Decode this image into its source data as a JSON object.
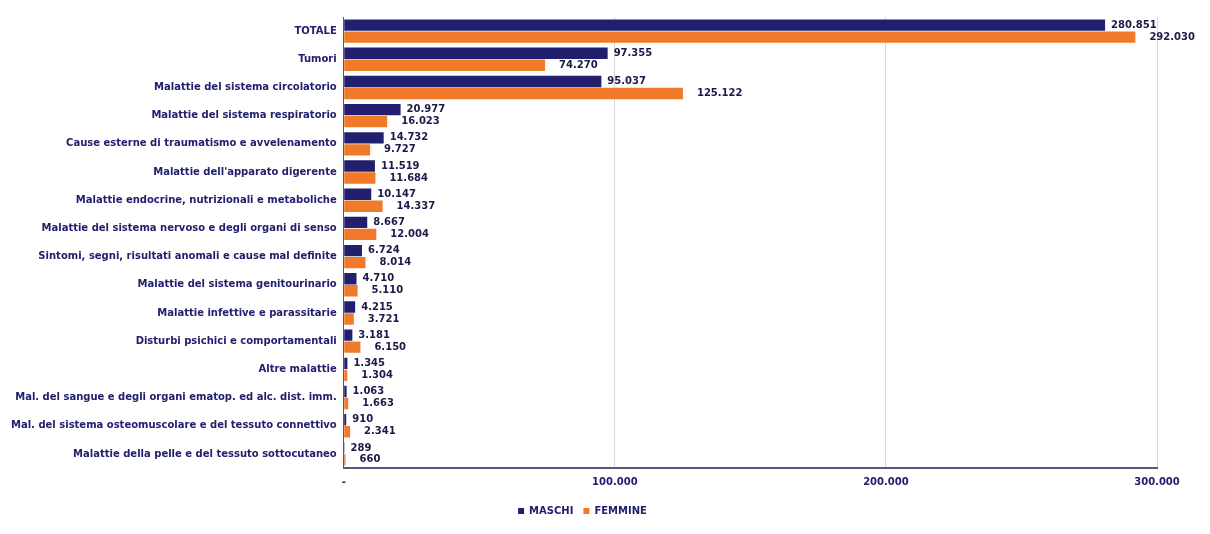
{
  "chart_data": {
    "type": "bar",
    "orientation": "horizontal",
    "categories": [
      "TOTALE",
      "Tumori",
      "Malattie del sistema circolatorio",
      "Malattie del sistema respiratorio",
      "Cause esterne di traumatismo e avvelenamento",
      "Malattie dell'apparato digerente",
      "Malattie endocrine, nutrizionali e metaboliche",
      "Malattie del sistema nervoso e degli organi di senso",
      "Sintomi, segni, risultati anomali e cause mal definite",
      "Malattie del sistema genitourinario",
      "Malattie infettive e parassitarie",
      "Disturbi psichici e comportamentali",
      "Altre malattie",
      "Mal. del sangue e degli organi ematop. ed alc. dist. imm.",
      "Mal. del sistema osteomuscolare e del tessuto connettivo",
      "Malattie della pelle e del tessuto sottocutaneo"
    ],
    "series": [
      {
        "name": "MASCHI",
        "color": "#22206e",
        "values": [
          280851,
          97355,
          95037,
          20977,
          14732,
          11519,
          10147,
          8667,
          6724,
          4710,
          4215,
          3181,
          1345,
          1063,
          910,
          289
        ],
        "value_labels": [
          "280.851",
          "97.355",
          "95.037",
          "20.977",
          "14.732",
          "11.519",
          "10.147",
          "8.667",
          "6.724",
          "4.710",
          "4.215",
          "3.181",
          "1.345",
          "1.063",
          "910",
          "289"
        ]
      },
      {
        "name": "FEMMINE",
        "color": "#f07a2a",
        "values": [
          292030,
          74270,
          125122,
          16023,
          9727,
          11684,
          14337,
          12004,
          8014,
          5110,
          3721,
          6150,
          1304,
          1663,
          2341,
          660
        ],
        "value_labels": [
          "292.030",
          "74.270",
          "125.122",
          "16.023",
          "9.727",
          "11.684",
          "14.337",
          "12.004",
          "8.014",
          "5.110",
          "3.721",
          "6.150",
          "1.304",
          "1.663",
          "2.341",
          "660"
        ]
      }
    ],
    "xlim": [
      0,
      300000
    ],
    "xticks": [
      {
        "value": 0,
        "label": "-"
      },
      {
        "value": 100000,
        "label": "100.000"
      },
      {
        "value": 200000,
        "label": "200.000"
      },
      {
        "value": 300000,
        "label": "300.000"
      }
    ],
    "grid": "x",
    "legend": "bottom"
  }
}
